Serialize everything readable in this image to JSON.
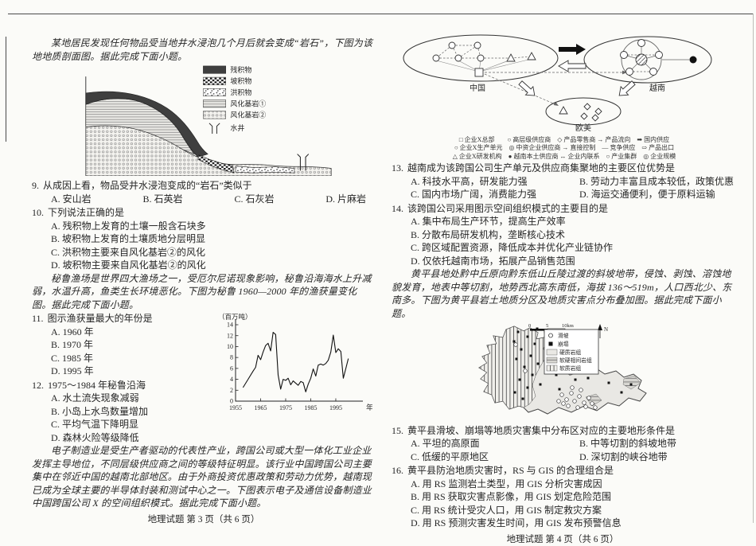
{
  "scan": {
    "footer_left": "地理试题 第 3 页（共 6 页）",
    "footer_right": "地理试题 第 4 页（共 6 页）"
  },
  "left": {
    "intro1": "某地居民发现任何物品受当地井水浸泡几个月后就会变成“岩石”，下图为该地地质剖面图。据此完成下面小题。",
    "geo_fig": {
      "legend": [
        "残积物",
        "坡积物",
        "洪积物",
        "风化基岩①",
        "风化基岩②",
        "水井"
      ]
    },
    "q9": {
      "num": "9.",
      "stem": "从成因上看，物品受井水浸泡变成的“岩石”类似于",
      "opts": [
        "A. 安山岩",
        "B. 石英岩",
        "C. 石灰岩",
        "D. 片麻岩"
      ]
    },
    "q10": {
      "num": "10.",
      "stem": "下列说法正确的是",
      "opts": [
        "A. 残积物上发育的土壤一般含石块多",
        "B. 坡积物上发育的土壤质地分层明显",
        "C. 洪积物主要来自风化基岩②的风化",
        "D. 坡积物主要来自风化基岩②的风化"
      ]
    },
    "intro2": "秘鲁渔场是世界四大渔场之一，受厄尔尼诺现象影响，秘鲁沿海海水上升减弱，水温升高，鱼类生长环境恶化。下图为秘鲁 1960—2000 年的渔获量变化图。据此完成下面小题。",
    "q11": {
      "num": "11.",
      "stem": "图示渔获量最大的年份是",
      "opts": [
        "A. 1960 年",
        "B. 1970 年",
        "C. 1985 年",
        "D. 1995 年"
      ]
    },
    "q12": {
      "num": "12.",
      "stem": "1975～1984 年秘鲁沿海",
      "opts": [
        "A. 水土流失现象减弱",
        "B. 小岛上水鸟数量增加",
        "C. 平均气温下降明显",
        "D. 森林火险等级降低"
      ]
    },
    "intro3": "电子制造业是受生产者驱动的代表性产业，跨国公司或大型一体化工业企业发挥主导地位，不同层级供应商之间的等级特征明显。该行业中国跨国公司主要集中在邻近中国的越南北部地区。由于外商投资优惠政策和劳动力优势，越南现已成为全球主要的半导体封装和测试中心之一。下图表示电子及通信设备制造业中国跨国公司 X 的空间组织模式。据此完成下面小题。"
  },
  "chart_data": {
    "type": "line",
    "unit_label": "（百万吨）",
    "xlabel": "年份",
    "ylim": [
      0,
      14
    ],
    "xlim": [
      1955,
      2002
    ],
    "yticks": [
      0,
      2,
      4,
      6,
      8,
      10,
      12,
      14
    ],
    "xticks": [
      1955,
      1965,
      1975,
      1985,
      1995
    ],
    "grid": false,
    "x": [
      1958,
      1960,
      1962,
      1963,
      1964,
      1965,
      1966,
      1967,
      1968,
      1969,
      1970,
      1971,
      1972,
      1973,
      1974,
      1975,
      1976,
      1977,
      1978,
      1979,
      1980,
      1981,
      1982,
      1983,
      1984,
      1985,
      1986,
      1987,
      1988,
      1989,
      1990,
      1991,
      1992,
      1993,
      1994,
      1995,
      1996,
      1997,
      1998,
      1999,
      2000
    ],
    "y": [
      2.5,
      4.0,
      5.5,
      6.2,
      8.4,
      7.6,
      9.0,
      10.2,
      10.6,
      9.2,
      12.6,
      12.2,
      4.8,
      2.2,
      4.0,
      3.8,
      4.2,
      3.0,
      3.7,
      3.3,
      2.9,
      3.6,
      3.4,
      1.7,
      3.1,
      4.2,
      5.9,
      4.6,
      6.6,
      6.8,
      6.6,
      6.9,
      7.5,
      9.0,
      12.1,
      8.9,
      9.6,
      9.1,
      4.2,
      6.0,
      7.8
    ]
  },
  "right": {
    "net_fig": {
      "china": "中国",
      "vietnam": "越南",
      "west": "欧美",
      "legend": [
        "□ 企业X总部　　○ 高层级供应商　◇ 产品零售商 → 产品流向　➡ 国内供应",
        "○ 企业X生产单元　◎ 中资企业供应商 → 直接控制　— 竞争供应　⇨ 产品出口",
        "△ 企业X研发机构　● 越南本土供应商 ↔ 企业内联系　○ 产业集群　◎ 企业规模"
      ]
    },
    "q13": {
      "num": "13.",
      "stem": "越南成为该跨国公司生产单元及供应商集聚地的主要区位优势是",
      "opts": [
        "A. 科技水平高，研发能力强",
        "B. 劳动力丰富且成本较低，政策优惠",
        "C. 国内市场广阔，消费能力强",
        "D. 海运交通便利，便于原料运输"
      ]
    },
    "q14": {
      "num": "14.",
      "stem": "该跨国公司采用图示空间组织模式的主要目的是",
      "opts": [
        "A. 集中布局生产环节，提高生产效率",
        "B. 分散布局研发机构，垄断核心技术",
        "C. 跨区域配置资源，降低成本并优化产业链协作",
        "D. 仅依托越南市场，拓展产品销售范围"
      ]
    },
    "intro4": "黄平县地处黔中丘原向黔东低山丘陵过渡的斜坡地带，侵蚀、剥蚀、溶蚀地貌发育，地表中等切割，地势西北高东南低，海拔 136～519m，人口西北少、东南多。下图为黄平县岩土地质分区及地质灾害点分布叠加图。据此完成下面小题。",
    "map_fig": {
      "scale_labels": [
        "0",
        "5",
        "10km"
      ],
      "north": "N",
      "legend": [
        "滑坡",
        "崩塌",
        "硬质岩组",
        "软硬相间岩组",
        "软质岩组"
      ]
    },
    "q15": {
      "num": "15.",
      "stem": "黄平县滑坡、崩塌等地质灾害集中分布区对应的主要地形条件是",
      "opts": [
        "A. 平坦的高原面",
        "B. 中等切割的斜坡地带",
        "C. 低缓的平原地区",
        "D. 深切割的峡谷地带"
      ]
    },
    "q16": {
      "num": "16.",
      "stem": "黄平县防治地质灾害时，RS 与 GIS 的合理组合是",
      "opts": [
        "A. 用 RS 监测岩土类型，用 GIS 分析灾害成因",
        "B. 用 RS 获取灾害点影像，用 GIS 划定危险范围",
        "C. 用 RS 统计受灾人口，用 GIS 制定救灾方案",
        "D. 用 RS 预测灾害发生时间，用 GIS 发布预警信息"
      ]
    }
  }
}
